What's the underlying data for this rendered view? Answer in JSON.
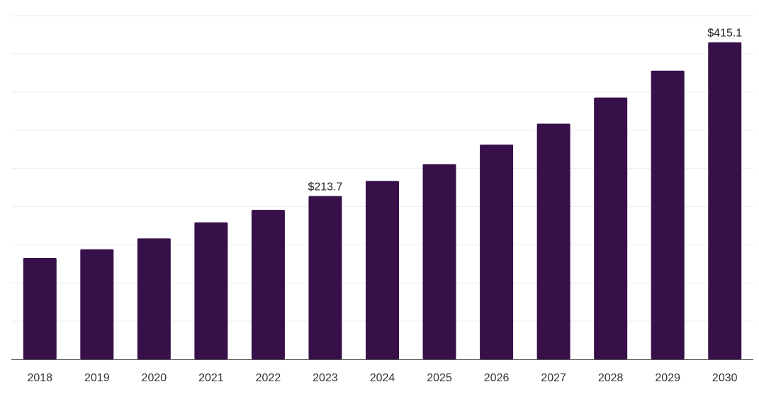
{
  "chart_data": {
    "type": "bar",
    "categories": [
      "2018",
      "2019",
      "2020",
      "2021",
      "2022",
      "2023",
      "2024",
      "2025",
      "2026",
      "2027",
      "2028",
      "2029",
      "2030"
    ],
    "values": [
      132.7,
      144.0,
      158.3,
      179.3,
      195.6,
      213.7,
      233.6,
      255.5,
      281.1,
      308.5,
      342.7,
      377.9,
      415.1
    ],
    "value_labels": [
      "",
      "",
      "",
      "",
      "",
      "$213.7",
      "",
      "",
      "",
      "",
      "",
      "",
      "$415.1"
    ],
    "title": "",
    "xlabel": "",
    "ylabel": "",
    "ylim": [
      0,
      450
    ],
    "grid": true,
    "bar_color": "#37104a",
    "grid_color": "#eeeeee",
    "axis_color": "#555555"
  }
}
